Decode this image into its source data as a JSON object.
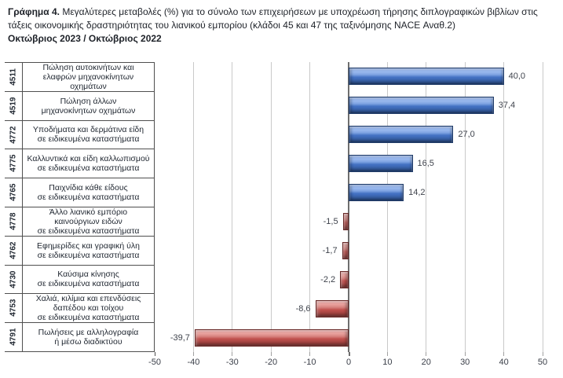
{
  "chart_data": {
    "type": "bar",
    "orientation": "horizontal",
    "title_prefix": "Γράφημα 4.",
    "title_text": " Μεγαλύτερες μεταβολές (%) για το σύνολο των επιχειρήσεων με υποχρέωση τήρησης διπλογραφικών βιβλίων στις τάξεις οικονομικής δραστηριότητας του λιανικού εμπορίου (κλάδοι 45 και 47 της ταξινόμησης NACE Αναθ.2)",
    "subtitle": "Οκτώβριος 2023 / Οκτώβριος 2022",
    "xlim": [
      -50,
      50
    ],
    "x_tick_labels": [
      "-50",
      "-40",
      "-30",
      "-20",
      "-10",
      "0",
      "10",
      "20",
      "30",
      "40",
      "50"
    ],
    "grid": true,
    "legend": "none",
    "positive_color": "#4472C4",
    "negative_color": "#C0504D",
    "grid_color": "#C9C9C9",
    "zero_line_color": "#6E6E6E",
    "axis_color": "#4F4F4F",
    "categories": [
      {
        "code": "4511",
        "label": "Πώληση αυτοκινήτων και\nελαφρών μηχανοκίνητων οχημάτων",
        "value": 40.0,
        "value_label": "40,0"
      },
      {
        "code": "4519",
        "label": "Πώληση άλλων\nμηχανοκίνητων οχημάτων",
        "value": 37.4,
        "value_label": "37,4"
      },
      {
        "code": "4772",
        "label": "Υποδήματα και δερμάτινα είδη\nσε ειδικευμένα καταστήματα",
        "value": 27.0,
        "value_label": "27,0"
      },
      {
        "code": "4775",
        "label": "Καλλυντικά και είδη καλλωπισμού\nσε ειδικευμένα καταστήματα",
        "value": 16.5,
        "value_label": "16,5"
      },
      {
        "code": "4765",
        "label": "Παιχνίδια κάθε είδους\nσε ειδικευμένα καταστήματα",
        "value": 14.2,
        "value_label": "14,2"
      },
      {
        "code": "4778",
        "label": "Άλλο λιανικό εμπόριο\nκαινούργιων ειδών\nσε ειδικευμένα καταστήματα",
        "value": -1.5,
        "value_label": "-1,5"
      },
      {
        "code": "4762",
        "label": "Εφημερίδες και γραφική ύλη\nσε ειδικευμένα καταστήματα",
        "value": -1.7,
        "value_label": "-1,7"
      },
      {
        "code": "4730",
        "label": "Καύσιμα κίνησης\nσε ειδικευμένα καταστήματα",
        "value": -2.2,
        "value_label": "-2,2"
      },
      {
        "code": "4753",
        "label": "Χαλιά, κιλίμια και επενδύσεις\nδαπέδου και τοίχου\nσε ειδικευμένα καταστήματα",
        "value": -8.6,
        "value_label": "-8,6"
      },
      {
        "code": "4791",
        "label": "Πωλήσεις με αλληλογραφία\nή μέσω διαδικτύου",
        "value": -39.7,
        "value_label": "-39,7"
      }
    ]
  }
}
